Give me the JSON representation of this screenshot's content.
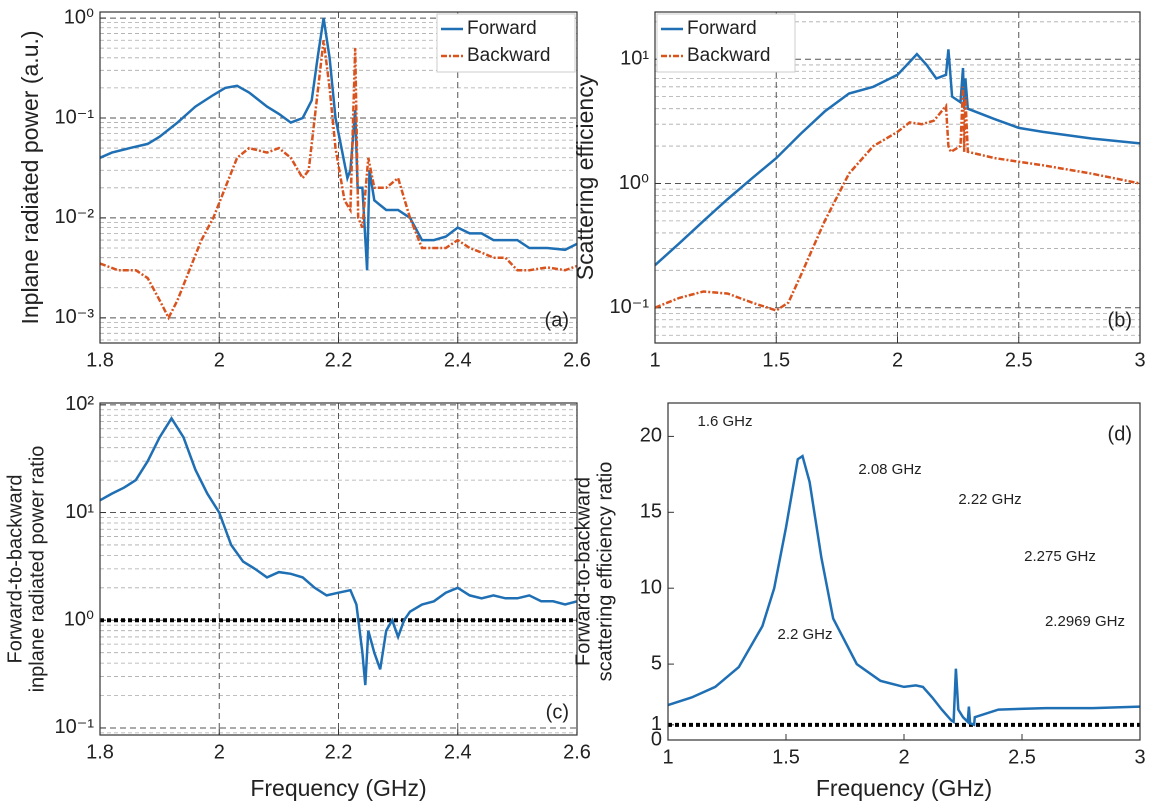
{
  "chart_data": [
    {
      "type": "line",
      "panel_label": "(a)",
      "y_label": "Inplane radiated power (a.u.)",
      "log_y": true,
      "grid": true,
      "legend": "top-right",
      "xlim": [
        1.8,
        2.6
      ],
      "xticks": [
        1.8,
        2,
        2.2,
        2.4,
        2.6
      ],
      "ylim": [
        0.00056,
        1.15
      ],
      "yticks": [
        {
          "value": 0.001,
          "label": "10⁻³"
        },
        {
          "value": 0.01,
          "label": "10⁻²"
        },
        {
          "value": 0.1,
          "label": "10⁻¹"
        },
        {
          "value": 1,
          "label": "10⁰"
        }
      ],
      "series": [
        {
          "name": "Forward",
          "color": "#1f6fb4",
          "line_style": "solid",
          "x": [
            1.8,
            1.82,
            1.85,
            1.88,
            1.9,
            1.93,
            1.96,
            1.99,
            2.01,
            2.03,
            2.05,
            2.08,
            2.1,
            2.12,
            2.14,
            2.155,
            2.165,
            2.175,
            2.185,
            2.195,
            2.205,
            2.215,
            2.22,
            2.228,
            2.232,
            2.24,
            2.248,
            2.252,
            2.26,
            2.28,
            2.3,
            2.32,
            2.34,
            2.36,
            2.38,
            2.4,
            2.42,
            2.44,
            2.46,
            2.48,
            2.5,
            2.52,
            2.55,
            2.58,
            2.6
          ],
          "values": [
            0.04,
            0.045,
            0.05,
            0.055,
            0.065,
            0.09,
            0.13,
            0.17,
            0.2,
            0.21,
            0.18,
            0.13,
            0.11,
            0.09,
            0.1,
            0.15,
            0.4,
            1.0,
            0.4,
            0.1,
            0.05,
            0.025,
            0.03,
            0.12,
            0.02,
            0.02,
            0.003,
            0.03,
            0.015,
            0.012,
            0.012,
            0.01,
            0.006,
            0.006,
            0.0065,
            0.008,
            0.007,
            0.007,
            0.006,
            0.006,
            0.006,
            0.005,
            0.005,
            0.0048,
            0.0055
          ]
        },
        {
          "name": "Backward",
          "color": "#d9531e",
          "line_style": "dashed",
          "x": [
            1.8,
            1.83,
            1.86,
            1.88,
            1.9,
            1.915,
            1.93,
            1.95,
            1.97,
            1.99,
            2.01,
            2.03,
            2.05,
            2.08,
            2.1,
            2.12,
            2.14,
            2.15,
            2.16,
            2.175,
            2.185,
            2.195,
            2.21,
            2.22,
            2.228,
            2.233,
            2.24,
            2.25,
            2.26,
            2.28,
            2.3,
            2.32,
            2.34,
            2.36,
            2.38,
            2.4,
            2.42,
            2.44,
            2.46,
            2.48,
            2.5,
            2.52,
            2.55,
            2.58,
            2.6
          ],
          "values": [
            0.0035,
            0.003,
            0.003,
            0.0025,
            0.0015,
            0.001,
            0.0015,
            0.003,
            0.006,
            0.01,
            0.02,
            0.04,
            0.05,
            0.045,
            0.05,
            0.04,
            0.025,
            0.03,
            0.1,
            0.6,
            0.2,
            0.05,
            0.015,
            0.012,
            0.5,
            0.01,
            0.008,
            0.04,
            0.02,
            0.02,
            0.025,
            0.01,
            0.005,
            0.005,
            0.005,
            0.006,
            0.005,
            0.0045,
            0.004,
            0.004,
            0.003,
            0.003,
            0.0032,
            0.003,
            0.0033
          ]
        }
      ]
    },
    {
      "type": "line",
      "panel_label": "(b)",
      "y_label": "Scattering efficiency",
      "log_y": true,
      "grid": true,
      "legend": "top-left",
      "xlim": [
        1,
        3
      ],
      "xticks": [
        1,
        1.5,
        2,
        2.5,
        3
      ],
      "ylim": [
        0.052,
        24
      ],
      "yticks": [
        {
          "value": 0.1,
          "label": "10⁻¹"
        },
        {
          "value": 1,
          "label": "10⁰"
        },
        {
          "value": 10,
          "label": "10¹"
        }
      ],
      "series": [
        {
          "name": "Forward",
          "color": "#1f6fb4",
          "line_style": "solid",
          "x": [
            1.0,
            1.1,
            1.2,
            1.3,
            1.4,
            1.5,
            1.6,
            1.7,
            1.8,
            1.9,
            2.0,
            2.05,
            2.08,
            2.12,
            2.16,
            2.2,
            2.21,
            2.225,
            2.26,
            2.27,
            2.275,
            2.28,
            2.29,
            2.4,
            2.5,
            2.6,
            2.8,
            3.0
          ],
          "values": [
            0.22,
            0.33,
            0.5,
            0.75,
            1.1,
            1.6,
            2.5,
            3.8,
            5.3,
            6,
            7.5,
            9.5,
            11,
            9,
            7,
            7.5,
            12,
            5,
            4.5,
            8.5,
            4,
            7,
            4,
            3.3,
            2.8,
            2.6,
            2.3,
            2.1
          ]
        },
        {
          "name": "Backward",
          "color": "#d9531e",
          "line_style": "dashed",
          "x": [
            1.0,
            1.1,
            1.2,
            1.3,
            1.4,
            1.5,
            1.55,
            1.6,
            1.7,
            1.8,
            1.9,
            2.0,
            2.05,
            2.1,
            2.15,
            2.2,
            2.21,
            2.22,
            2.26,
            2.27,
            2.275,
            2.28,
            2.29,
            2.4,
            2.6,
            2.8,
            3.0
          ],
          "values": [
            0.1,
            0.12,
            0.135,
            0.13,
            0.11,
            0.095,
            0.11,
            0.18,
            0.5,
            1.2,
            2.0,
            2.6,
            3.1,
            3.0,
            3.2,
            4.2,
            2.0,
            1.8,
            2.0,
            6,
            1.8,
            5,
            1.8,
            1.6,
            1.4,
            1.2,
            1.0
          ]
        }
      ]
    },
    {
      "type": "line",
      "panel_label": "(c)",
      "y_label": [
        "Forward-to-backward",
        "inplane radiated power ratio"
      ],
      "x_label": "Frequency (GHz)",
      "log_y": true,
      "grid": true,
      "reference_line": 1,
      "xlim": [
        1.8,
        2.6
      ],
      "xticks": [
        1.8,
        2,
        2.2,
        2.4,
        2.6
      ],
      "ylim": [
        0.086,
        104
      ],
      "yticks": [
        {
          "value": 0.1,
          "label": "10⁻¹"
        },
        {
          "value": 1,
          "label": "10⁰"
        },
        {
          "value": 10,
          "label": "10¹"
        },
        {
          "value": 100,
          "label": "10²"
        }
      ],
      "series": [
        {
          "color": "#1f6fb4",
          "line_style": "solid",
          "x": [
            1.8,
            1.82,
            1.84,
            1.86,
            1.88,
            1.9,
            1.92,
            1.94,
            1.96,
            1.98,
            2.0,
            2.02,
            2.04,
            2.06,
            2.08,
            2.1,
            2.12,
            2.14,
            2.16,
            2.18,
            2.2,
            2.22,
            2.23,
            2.24,
            2.245,
            2.25,
            2.26,
            2.27,
            2.28,
            2.29,
            2.3,
            2.31,
            2.32,
            2.34,
            2.36,
            2.38,
            2.4,
            2.42,
            2.44,
            2.46,
            2.48,
            2.5,
            2.52,
            2.54,
            2.56,
            2.58,
            2.6
          ],
          "values": [
            13,
            15,
            17,
            20,
            30,
            50,
            75,
            50,
            25,
            15,
            10,
            5,
            3.5,
            3,
            2.5,
            2.8,
            2.7,
            2.5,
            2.0,
            1.7,
            1.8,
            1.9,
            1.4,
            0.5,
            0.25,
            0.8,
            0.5,
            0.35,
            0.8,
            1.0,
            0.7,
            1.0,
            1.2,
            1.4,
            1.5,
            1.8,
            2.0,
            1.7,
            1.6,
            1.7,
            1.6,
            1.6,
            1.7,
            1.5,
            1.5,
            1.4,
            1.5
          ]
        }
      ]
    },
    {
      "type": "line",
      "panel_label": "(d)",
      "y_label": [
        "Forward-to-backward",
        "scattering efficiency ratio"
      ],
      "x_label": "Frequency (GHz)",
      "log_y": false,
      "grid": false,
      "reference_line": 1,
      "xlim": [
        1,
        3
      ],
      "xticks": [
        1,
        1.5,
        2,
        2.5,
        3
      ],
      "ylim": [
        0,
        22.2
      ],
      "yticks": [
        0,
        1,
        5,
        10,
        15,
        20
      ],
      "annotations": [
        "1.6 GHz",
        "2.08 GHz",
        "2.22 GHz",
        "2.275 GHz",
        "2.2969 GHz",
        "2.2 GHz"
      ],
      "series": [
        {
          "color": "#1f6fb4",
          "line_style": "solid",
          "x": [
            1.0,
            1.1,
            1.2,
            1.3,
            1.4,
            1.45,
            1.5,
            1.55,
            1.57,
            1.6,
            1.65,
            1.7,
            1.8,
            1.9,
            2.0,
            2.05,
            2.08,
            2.12,
            2.16,
            2.2,
            2.21,
            2.22,
            2.23,
            2.25,
            2.27,
            2.275,
            2.28,
            2.2969,
            2.3,
            2.4,
            2.6,
            2.8,
            3.0
          ],
          "values": [
            2.3,
            2.8,
            3.5,
            4.8,
            7.5,
            10,
            14,
            18.5,
            18.7,
            17,
            12,
            8,
            5,
            3.9,
            3.5,
            3.6,
            3.5,
            2.8,
            2.0,
            1.3,
            1.2,
            4.7,
            2.0,
            1.5,
            1.2,
            2.2,
            1.1,
            1.0,
            1.5,
            2.0,
            2.1,
            2.1,
            2.2
          ]
        }
      ]
    }
  ]
}
